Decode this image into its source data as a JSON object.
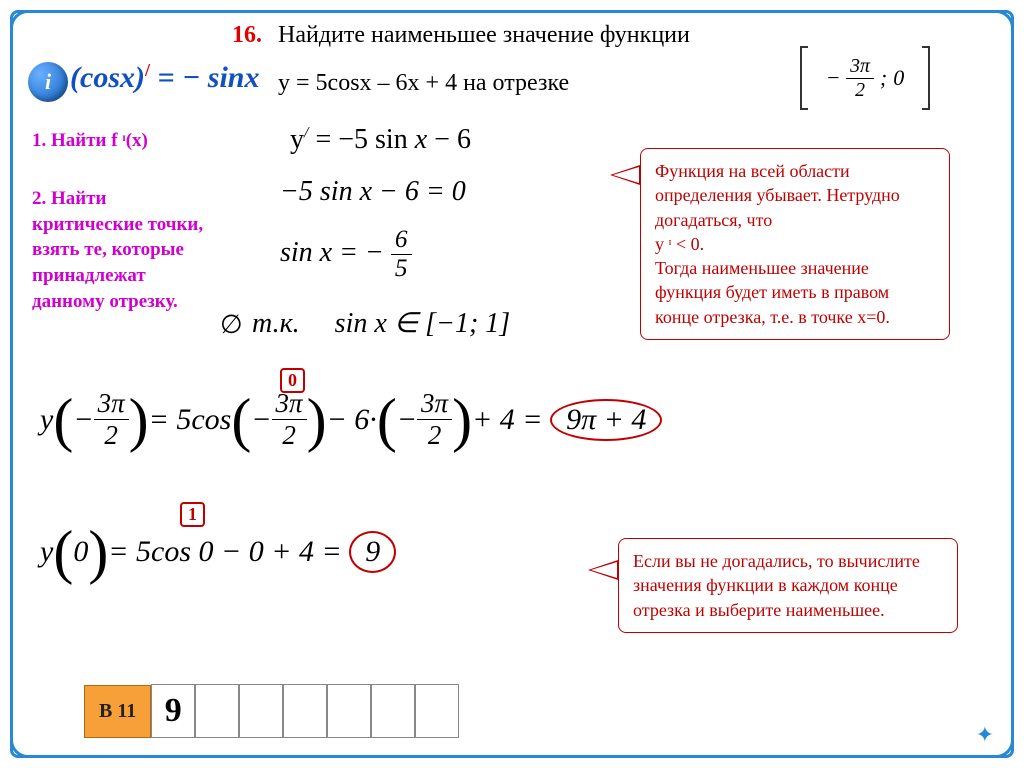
{
  "problem": {
    "number": "16.",
    "title": "Найдите наименьшее значение функции",
    "function_line": "y = 5cosx – 6x + 4 на отрезке",
    "interval_num": "3π",
    "interval_den": "2",
    "interval_sign": "−",
    "interval_right": "0"
  },
  "logo": "i",
  "derivative_rule": "(cosx)ʹ = – sinx",
  "derivative_rule_left": "cosx",
  "derivative_rule_right": "= − sinx",
  "steps": {
    "s1": "1. Найти f ᶦ(x)",
    "s2": "2. Найти критические точки, взять те, которые принадлежат данному отрезку."
  },
  "equations": {
    "e1": "yʹ = −5 sin x − 6",
    "e2": "−5 sin x − 6 = 0",
    "e3_lhs": "sin x = −",
    "e3_num": "6",
    "e3_den": "5",
    "e4_pre": "т.к.",
    "e4": "sin x ∈ [−1; 1]"
  },
  "empty_set": "∅",
  "callout1": {
    "l1": "Функция на всей области определения убывает. Нетрудно догадаться, что",
    "l2": "y ᶦ < 0.",
    "l3": "Тогда наименьшее значение функция будет иметь в правом конце отрезка, т.е. в точке х=0."
  },
  "callout2": "Если вы не догадались, то вычислите значения функции в каждом конце отрезка и выберите наименьшее.",
  "digits": {
    "zero": "0",
    "one": "1"
  },
  "big": {
    "y_label": "y",
    "arg1_num": "3π",
    "arg1_den": "2",
    "eq1_mid1": "= 5cos",
    "eq1_mid2": "− 6·",
    "eq1_mid3": "+ 4 =",
    "eq1_res": "9π + 4",
    "arg2": "0",
    "eq2_body": "= 5cos 0 − 0 + 4 =",
    "eq2_res": "9"
  },
  "answer": {
    "label": "В 11",
    "value": "9"
  },
  "colors": {
    "frame": "#2389d8",
    "red": "#e00000",
    "magenta": "#d000d0",
    "blue": "#1050c0",
    "callout_border": "#c00000",
    "orange": "#f8a038"
  }
}
